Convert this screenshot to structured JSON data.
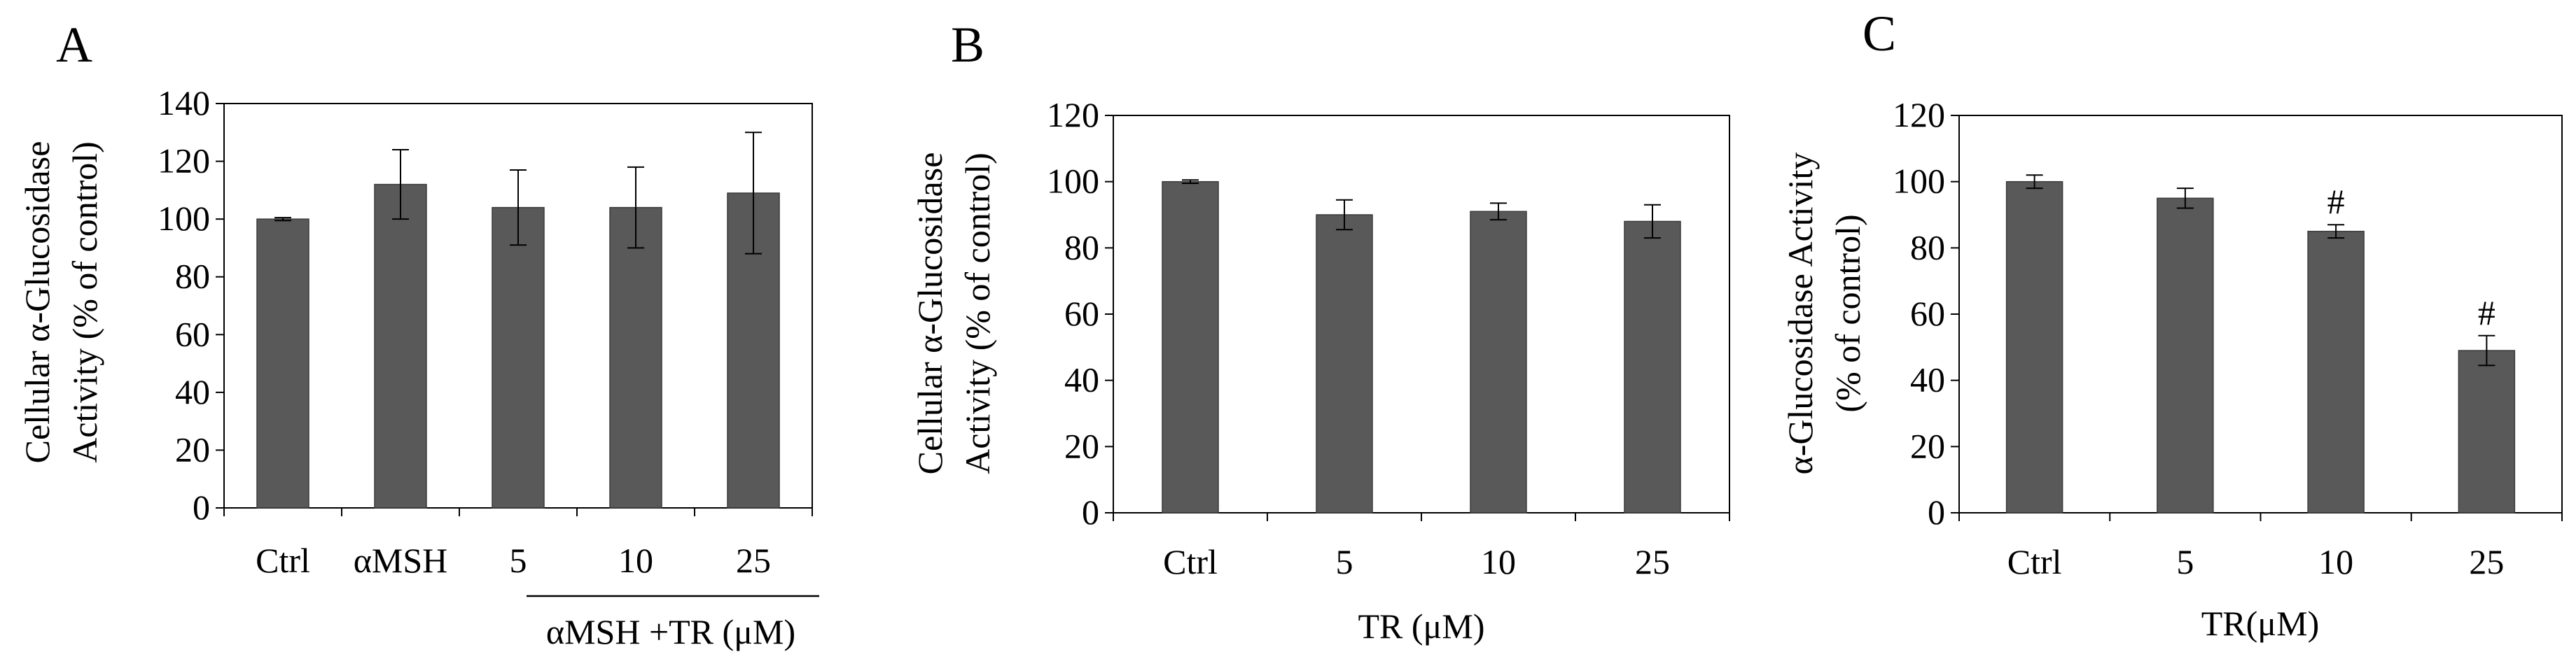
{
  "chart_data": [
    {
      "panel_label": "A",
      "type": "bar",
      "categories": [
        "Ctrl",
        "αMSH",
        "5",
        "10",
        "25"
      ],
      "values": [
        100,
        112,
        104,
        104,
        109
      ],
      "errors": [
        0.5,
        12,
        13,
        14,
        21
      ],
      "ylabel_lines": [
        "Cellular α-Glucosidase",
        "Activity (% of control)"
      ],
      "xlabel": "αMSH +TR (μM)",
      "ylim": [
        0,
        140
      ],
      "yticks": [
        0,
        20,
        40,
        60,
        80,
        100,
        120,
        140
      ],
      "annotations": [
        "",
        "",
        "",
        "",
        ""
      ],
      "bar_color": "#595959"
    },
    {
      "panel_label": "B",
      "type": "bar",
      "categories": [
        "Ctrl",
        "5",
        "10",
        "25"
      ],
      "values": [
        100,
        90,
        91,
        88
      ],
      "errors": [
        0.5,
        4.5,
        2.5,
        5
      ],
      "ylabel_lines": [
        "Cellular α-Glucosidase",
        "Activity (% of control)"
      ],
      "xlabel": "TR (μM)",
      "ylim": [
        0,
        120
      ],
      "yticks": [
        0,
        20,
        40,
        60,
        80,
        100,
        120
      ],
      "annotations": [
        "",
        "",
        "",
        ""
      ],
      "bar_color": "#595959"
    },
    {
      "panel_label": "C",
      "type": "bar",
      "categories": [
        "Ctrl",
        "5",
        "10",
        "25"
      ],
      "values": [
        100,
        95,
        85,
        49
      ],
      "errors": [
        2,
        3,
        2,
        4.5
      ],
      "ylabel_lines": [
        "α-Glucosidase Activity",
        "(% of control)"
      ],
      "xlabel": "TR(μM)",
      "ylim": [
        0,
        120
      ],
      "yticks": [
        0,
        20,
        40,
        60,
        80,
        100,
        120
      ],
      "annotations": [
        "",
        "",
        "#",
        "#"
      ],
      "bar_color": "#595959"
    }
  ]
}
